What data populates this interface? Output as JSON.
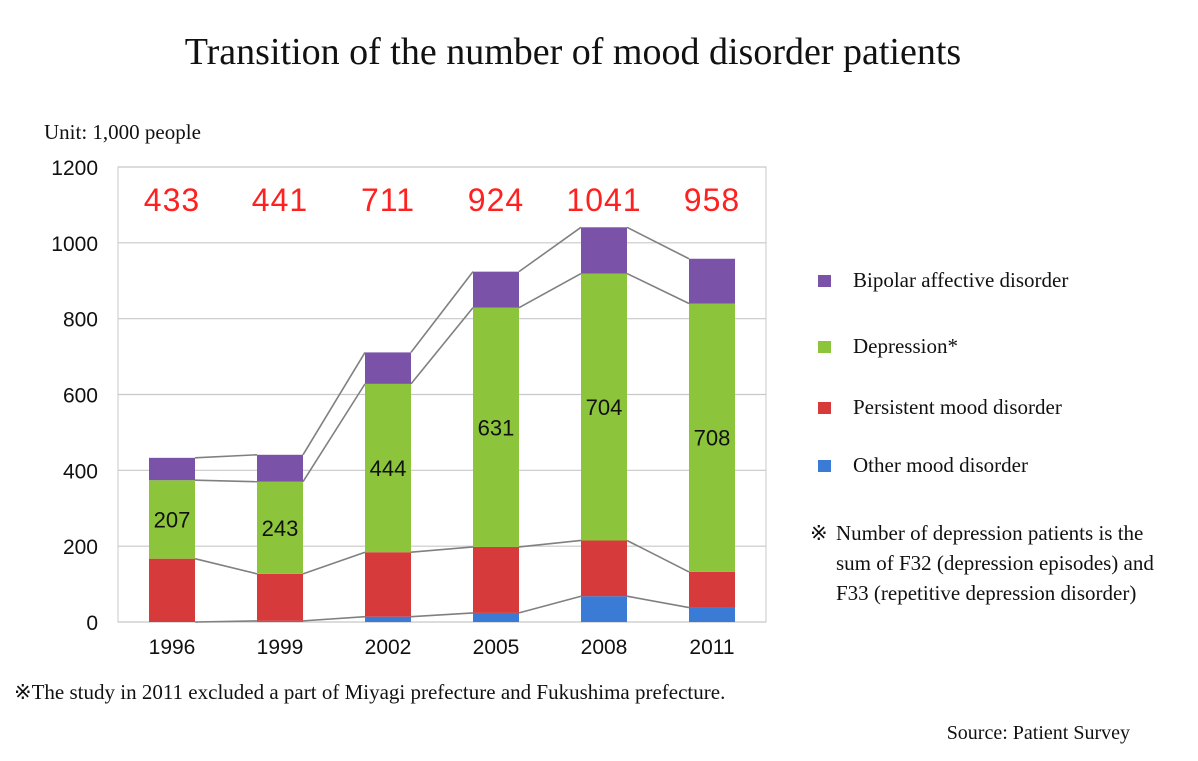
{
  "chart_data": {
    "type": "bar",
    "stacked": true,
    "title": "Transition of the number of mood disorder patients",
    "unit_label": "Unit: 1,000 people",
    "categories": [
      "1996",
      "1999",
      "2002",
      "2005",
      "2008",
      "2011"
    ],
    "ylim": [
      0,
      1200
    ],
    "yticks": [
      0,
      200,
      400,
      600,
      800,
      1000,
      1200
    ],
    "grid": true,
    "series": [
      {
        "name": "Other mood disorder",
        "color": "#3a7bd5",
        "values": [
          0,
          3,
          14,
          24,
          68,
          38
        ]
      },
      {
        "name": "Persistent mood disorder",
        "color": "#d63a3a",
        "values": [
          167,
          124,
          170,
          174,
          147,
          94
        ]
      },
      {
        "name": "Depression*",
        "color": "#8cc43c",
        "values": [
          207,
          243,
          444,
          631,
          704,
          708
        ],
        "labels": [
          "207",
          "243",
          "444",
          "631",
          "704",
          "708"
        ]
      },
      {
        "name": "Bipolar affective disorder",
        "color": "#7a52a8",
        "values": [
          59,
          71,
          83,
          95,
          122,
          118
        ]
      }
    ],
    "totals": [
      "433",
      "441",
      "711",
      "924",
      "1041",
      "958"
    ],
    "total_color": "#ff2020",
    "legend_position": "right"
  },
  "legend": {
    "items": [
      {
        "label": "Bipolar affective disorder",
        "color": "#7a52a8"
      },
      {
        "label": "Depression*",
        "color": "#8cc43c"
      },
      {
        "label": "Persistent mood disorder",
        "color": "#d63a3a"
      },
      {
        "label": "Other mood disorder",
        "color": "#3a7bd5"
      }
    ],
    "note_mark": "※",
    "note_text": "Number of depression patients is the sum of F32 (depression episodes) and F33 (repetitive depression disorder)"
  },
  "footnote": "※The study in 2011 excluded a part of Miyagi prefecture and Fukushima prefecture.",
  "source": "Source: Patient Survey"
}
